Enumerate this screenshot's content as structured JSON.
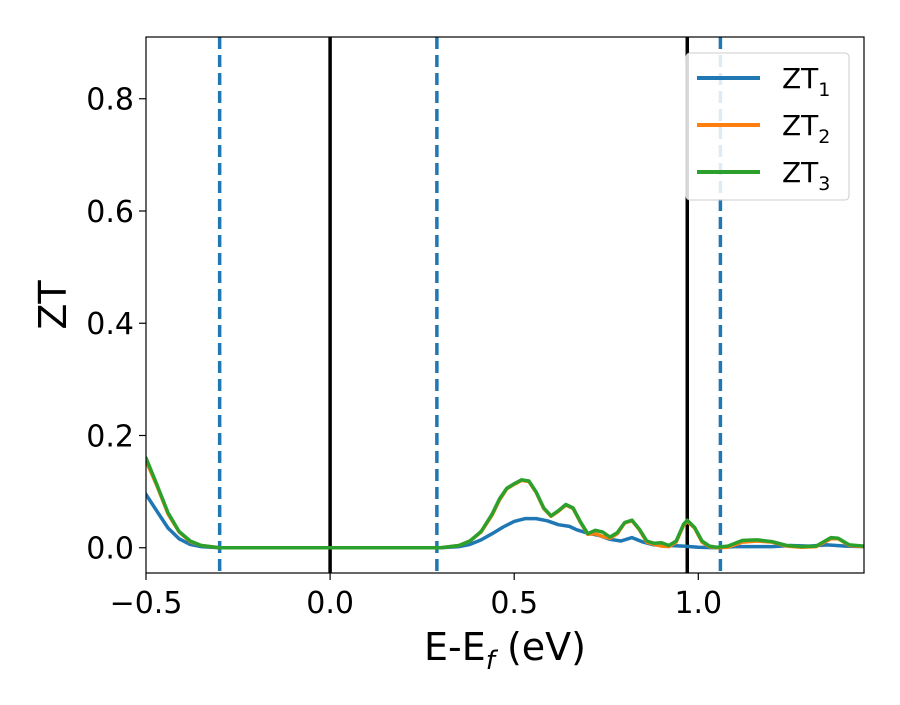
{
  "chart_data": {
    "type": "line",
    "xlabel": "E-E_f (eV)",
    "ylabel": "ZT",
    "xlim": [
      -0.5,
      1.45
    ],
    "ylim": [
      -0.045,
      0.91
    ],
    "xticks": [
      -0.5,
      0.0,
      0.5,
      1.0
    ],
    "xtick_labels": [
      "−0.5",
      "0.0",
      "0.5",
      "1.0"
    ],
    "yticks": [
      0.0,
      0.2,
      0.4,
      0.6,
      0.8
    ],
    "ytick_labels": [
      "0.0",
      "0.2",
      "0.4",
      "0.6",
      "0.8"
    ],
    "grid": false,
    "legend_position": "top-right",
    "vlines": [
      {
        "x": -0.3,
        "style": "dashed",
        "color": "#1f77b4"
      },
      {
        "x": 0.0,
        "style": "solid",
        "color": "#000000"
      },
      {
        "x": 0.29,
        "style": "dashed",
        "color": "#1f77b4"
      },
      {
        "x": 0.97,
        "style": "solid",
        "color": "#000000"
      },
      {
        "x": 1.06,
        "style": "dashed",
        "color": "#1f77b4"
      }
    ],
    "series": [
      {
        "name": "ZT1",
        "legend_base": "ZT",
        "legend_sub": "1",
        "color": "#1f77b4",
        "points": [
          [
            -0.5,
            0.095
          ],
          [
            -0.47,
            0.065
          ],
          [
            -0.44,
            0.035
          ],
          [
            -0.41,
            0.016
          ],
          [
            -0.38,
            0.006
          ],
          [
            -0.35,
            0.002
          ],
          [
            -0.3,
            0.0
          ],
          [
            0.0,
            0.0
          ],
          [
            0.3,
            0.0
          ],
          [
            0.35,
            0.002
          ],
          [
            0.38,
            0.006
          ],
          [
            0.41,
            0.014
          ],
          [
            0.44,
            0.025
          ],
          [
            0.47,
            0.037
          ],
          [
            0.5,
            0.047
          ],
          [
            0.53,
            0.052
          ],
          [
            0.56,
            0.052
          ],
          [
            0.59,
            0.048
          ],
          [
            0.62,
            0.041
          ],
          [
            0.65,
            0.038
          ],
          [
            0.67,
            0.032
          ],
          [
            0.7,
            0.026
          ],
          [
            0.73,
            0.022
          ],
          [
            0.76,
            0.015
          ],
          [
            0.79,
            0.012
          ],
          [
            0.82,
            0.018
          ],
          [
            0.85,
            0.01
          ],
          [
            0.88,
            0.005
          ],
          [
            0.92,
            0.004
          ],
          [
            0.96,
            0.003
          ],
          [
            1.0,
            0.001
          ],
          [
            1.05,
            0.0
          ],
          [
            1.1,
            0.002
          ],
          [
            1.15,
            0.002
          ],
          [
            1.2,
            0.002
          ],
          [
            1.25,
            0.004
          ],
          [
            1.3,
            0.003
          ],
          [
            1.35,
            0.005
          ],
          [
            1.4,
            0.003
          ],
          [
            1.45,
            0.002
          ]
        ]
      },
      {
        "name": "ZT2",
        "legend_base": "ZT",
        "legend_sub": "2",
        "color": "#ff7f0e",
        "points": [
          [
            -0.5,
            0.155
          ],
          [
            -0.47,
            0.11
          ],
          [
            -0.44,
            0.06
          ],
          [
            -0.41,
            0.028
          ],
          [
            -0.38,
            0.011
          ],
          [
            -0.35,
            0.004
          ],
          [
            -0.3,
            0.0
          ],
          [
            0.0,
            0.0
          ],
          [
            0.3,
            0.0
          ],
          [
            0.35,
            0.004
          ],
          [
            0.38,
            0.012
          ],
          [
            0.41,
            0.028
          ],
          [
            0.44,
            0.058
          ],
          [
            0.46,
            0.085
          ],
          [
            0.48,
            0.105
          ],
          [
            0.5,
            0.113
          ],
          [
            0.52,
            0.12
          ],
          [
            0.54,
            0.118
          ],
          [
            0.56,
            0.098
          ],
          [
            0.58,
            0.07
          ],
          [
            0.6,
            0.056
          ],
          [
            0.62,
            0.065
          ],
          [
            0.64,
            0.076
          ],
          [
            0.66,
            0.07
          ],
          [
            0.68,
            0.045
          ],
          [
            0.7,
            0.024
          ],
          [
            0.72,
            0.025
          ],
          [
            0.74,
            0.02
          ],
          [
            0.76,
            0.017
          ],
          [
            0.78,
            0.025
          ],
          [
            0.8,
            0.044
          ],
          [
            0.82,
            0.048
          ],
          [
            0.84,
            0.032
          ],
          [
            0.86,
            0.01
          ],
          [
            0.88,
            0.006
          ],
          [
            0.9,
            0.003
          ],
          [
            0.92,
            0.002
          ],
          [
            0.94,
            0.01
          ],
          [
            0.96,
            0.04
          ],
          [
            0.97,
            0.047
          ],
          [
            0.99,
            0.035
          ],
          [
            1.01,
            0.01
          ],
          [
            1.03,
            0.002
          ],
          [
            1.05,
            0.0
          ],
          [
            1.08,
            0.001
          ],
          [
            1.12,
            0.01
          ],
          [
            1.16,
            0.012
          ],
          [
            1.2,
            0.01
          ],
          [
            1.24,
            0.003
          ],
          [
            1.28,
            0.001
          ],
          [
            1.32,
            0.002
          ],
          [
            1.36,
            0.016
          ],
          [
            1.38,
            0.016
          ],
          [
            1.41,
            0.004
          ],
          [
            1.45,
            0.002
          ]
        ]
      },
      {
        "name": "ZT3",
        "legend_base": "ZT",
        "legend_sub": "3",
        "color": "#2ca02c",
        "points": [
          [
            -0.5,
            0.16
          ],
          [
            -0.47,
            0.112
          ],
          [
            -0.44,
            0.062
          ],
          [
            -0.41,
            0.029
          ],
          [
            -0.38,
            0.012
          ],
          [
            -0.35,
            0.004
          ],
          [
            -0.3,
            0.0
          ],
          [
            0.0,
            0.0
          ],
          [
            0.3,
            0.0
          ],
          [
            0.35,
            0.004
          ],
          [
            0.38,
            0.012
          ],
          [
            0.41,
            0.029
          ],
          [
            0.44,
            0.06
          ],
          [
            0.46,
            0.087
          ],
          [
            0.48,
            0.106
          ],
          [
            0.5,
            0.114
          ],
          [
            0.52,
            0.121
          ],
          [
            0.54,
            0.119
          ],
          [
            0.56,
            0.099
          ],
          [
            0.58,
            0.071
          ],
          [
            0.6,
            0.057
          ],
          [
            0.62,
            0.066
          ],
          [
            0.64,
            0.077
          ],
          [
            0.66,
            0.071
          ],
          [
            0.68,
            0.046
          ],
          [
            0.7,
            0.025
          ],
          [
            0.72,
            0.031
          ],
          [
            0.74,
            0.028
          ],
          [
            0.76,
            0.019
          ],
          [
            0.78,
            0.027
          ],
          [
            0.8,
            0.045
          ],
          [
            0.82,
            0.049
          ],
          [
            0.84,
            0.033
          ],
          [
            0.86,
            0.012
          ],
          [
            0.88,
            0.008
          ],
          [
            0.9,
            0.009
          ],
          [
            0.92,
            0.004
          ],
          [
            0.94,
            0.012
          ],
          [
            0.96,
            0.042
          ],
          [
            0.97,
            0.049
          ],
          [
            0.99,
            0.036
          ],
          [
            1.01,
            0.012
          ],
          [
            1.03,
            0.003
          ],
          [
            1.05,
            0.001
          ],
          [
            1.08,
            0.003
          ],
          [
            1.12,
            0.013
          ],
          [
            1.16,
            0.014
          ],
          [
            1.2,
            0.011
          ],
          [
            1.24,
            0.004
          ],
          [
            1.28,
            0.002
          ],
          [
            1.32,
            0.003
          ],
          [
            1.36,
            0.018
          ],
          [
            1.38,
            0.017
          ],
          [
            1.41,
            0.005
          ],
          [
            1.45,
            0.003
          ]
        ]
      }
    ]
  }
}
